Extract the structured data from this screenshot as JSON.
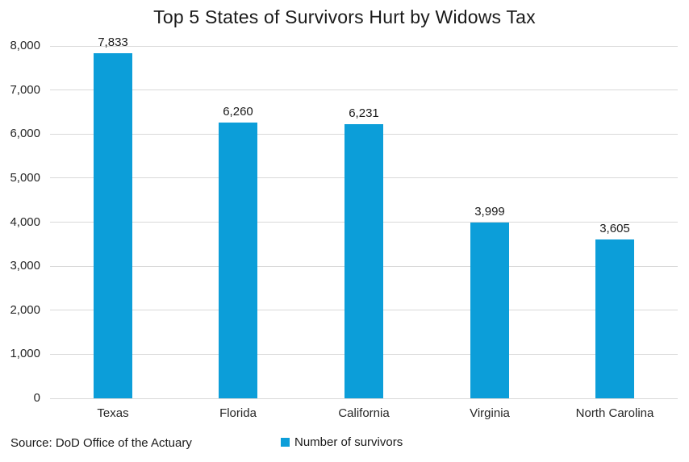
{
  "title": "Top 5 States of Survivors Hurt by Widows Tax",
  "source_note": "Source: DoD Office of the Actuary",
  "legend": {
    "label": "Number of survivors",
    "marker_color": "#0c9ed9"
  },
  "colors": {
    "bar": "#0c9ed9",
    "gridline": "#d9d9d9",
    "text": "#262626",
    "background": "#ffffff"
  },
  "chart_data": {
    "type": "bar",
    "title": "Top 5 States of Survivors Hurt by Widows Tax",
    "categories": [
      "Texas",
      "Florida",
      "California",
      "Virginia",
      "North Carolina"
    ],
    "values": [
      7833,
      6260,
      6231,
      3999,
      3605
    ],
    "value_labels": [
      "7,833",
      "6,260",
      "6,231",
      "3,999",
      "3,605"
    ],
    "series_name": "Number of survivors",
    "xlabel": "",
    "ylabel": "",
    "ylim": [
      0,
      8000
    ],
    "ytick_step": 1000,
    "ytick_labels": [
      "0",
      "1,000",
      "2,000",
      "3,000",
      "4,000",
      "5,000",
      "6,000",
      "7,000",
      "8,000"
    ],
    "grid": "horizontal",
    "legend_position": "bottom-center"
  }
}
